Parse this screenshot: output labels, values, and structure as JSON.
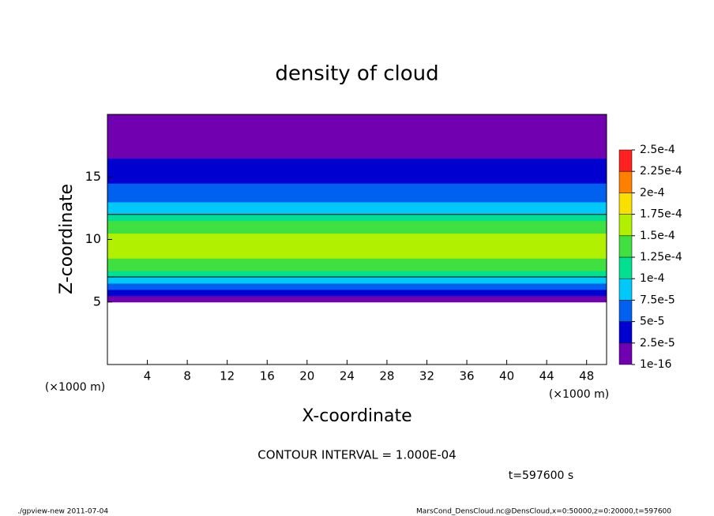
{
  "chart_data": {
    "type": "heatmap",
    "title": "density of cloud",
    "xlabel": "X-coordinate",
    "ylabel": "Z-coordinate",
    "x_unit": "(×1000 m)",
    "xlim": [
      0,
      50
    ],
    "xticks": [
      4,
      8,
      12,
      16,
      20,
      24,
      28,
      32,
      36,
      40,
      44,
      48
    ],
    "ylim": [
      0,
      20
    ],
    "yticks": [
      5,
      10,
      15
    ],
    "ybins": [
      5,
      5.5,
      6,
      6.5,
      7,
      7.5,
      8,
      8.5,
      9,
      9.5,
      10,
      10.5,
      11,
      11.5,
      12,
      12.5,
      13,
      13.5,
      14,
      14.5,
      15,
      15.5,
      16,
      16.5,
      17,
      17.5,
      18,
      18.5,
      19,
      19.5,
      20
    ],
    "values": [
      2e-05,
      4e-05,
      6e-05,
      8.5e-05,
      0.00011,
      0.00013,
      0.00014,
      0.000155,
      0.00016,
      0.00016,
      0.000155,
      0.000145,
      0.00013,
      0.00011,
      9e-05,
      8e-05,
      7e-05,
      6e-05,
      5.5e-05,
      4.5e-05,
      4e-05,
      3e-05,
      2.5e-05,
      1.8e-05,
      1.2e-05,
      8e-06,
      6e-06,
      5e-06,
      4e-06,
      3e-06
    ],
    "colorbar": {
      "ticks": [
        {
          "value": 1e-16,
          "label": "1e-16"
        },
        {
          "value": 2.5e-05,
          "label": "2.5e-5"
        },
        {
          "value": 5e-05,
          "label": "5e-5"
        },
        {
          "value": 7.5e-05,
          "label": "7.5e-5"
        },
        {
          "value": 0.0001,
          "label": "1e-4"
        },
        {
          "value": 0.000125,
          "label": "1.25e-4"
        },
        {
          "value": 0.00015,
          "label": "1.5e-4"
        },
        {
          "value": 0.000175,
          "label": "1.75e-4"
        },
        {
          "value": 0.0002,
          "label": "2e-4"
        },
        {
          "value": 0.000225,
          "label": "2.25e-4"
        },
        {
          "value": 0.00025,
          "label": "2.5e-4"
        }
      ],
      "colors": [
        "#7000b0",
        "#0000d0",
        "#0060f0",
        "#00c8f8",
        "#00e090",
        "#40e040",
        "#b0f000",
        "#f8e000",
        "#ff8000",
        "#ff2020"
      ]
    },
    "contour_interval": "CONTOUR INTERVAL = 1.000E-04",
    "time": "t=597600 s",
    "footer_left": "./gpview-new  2011-07-04",
    "footer_right": "MarsCond_DensCloud.nc@DensCloud,x=0:50000,z=0:20000,t=597600"
  }
}
